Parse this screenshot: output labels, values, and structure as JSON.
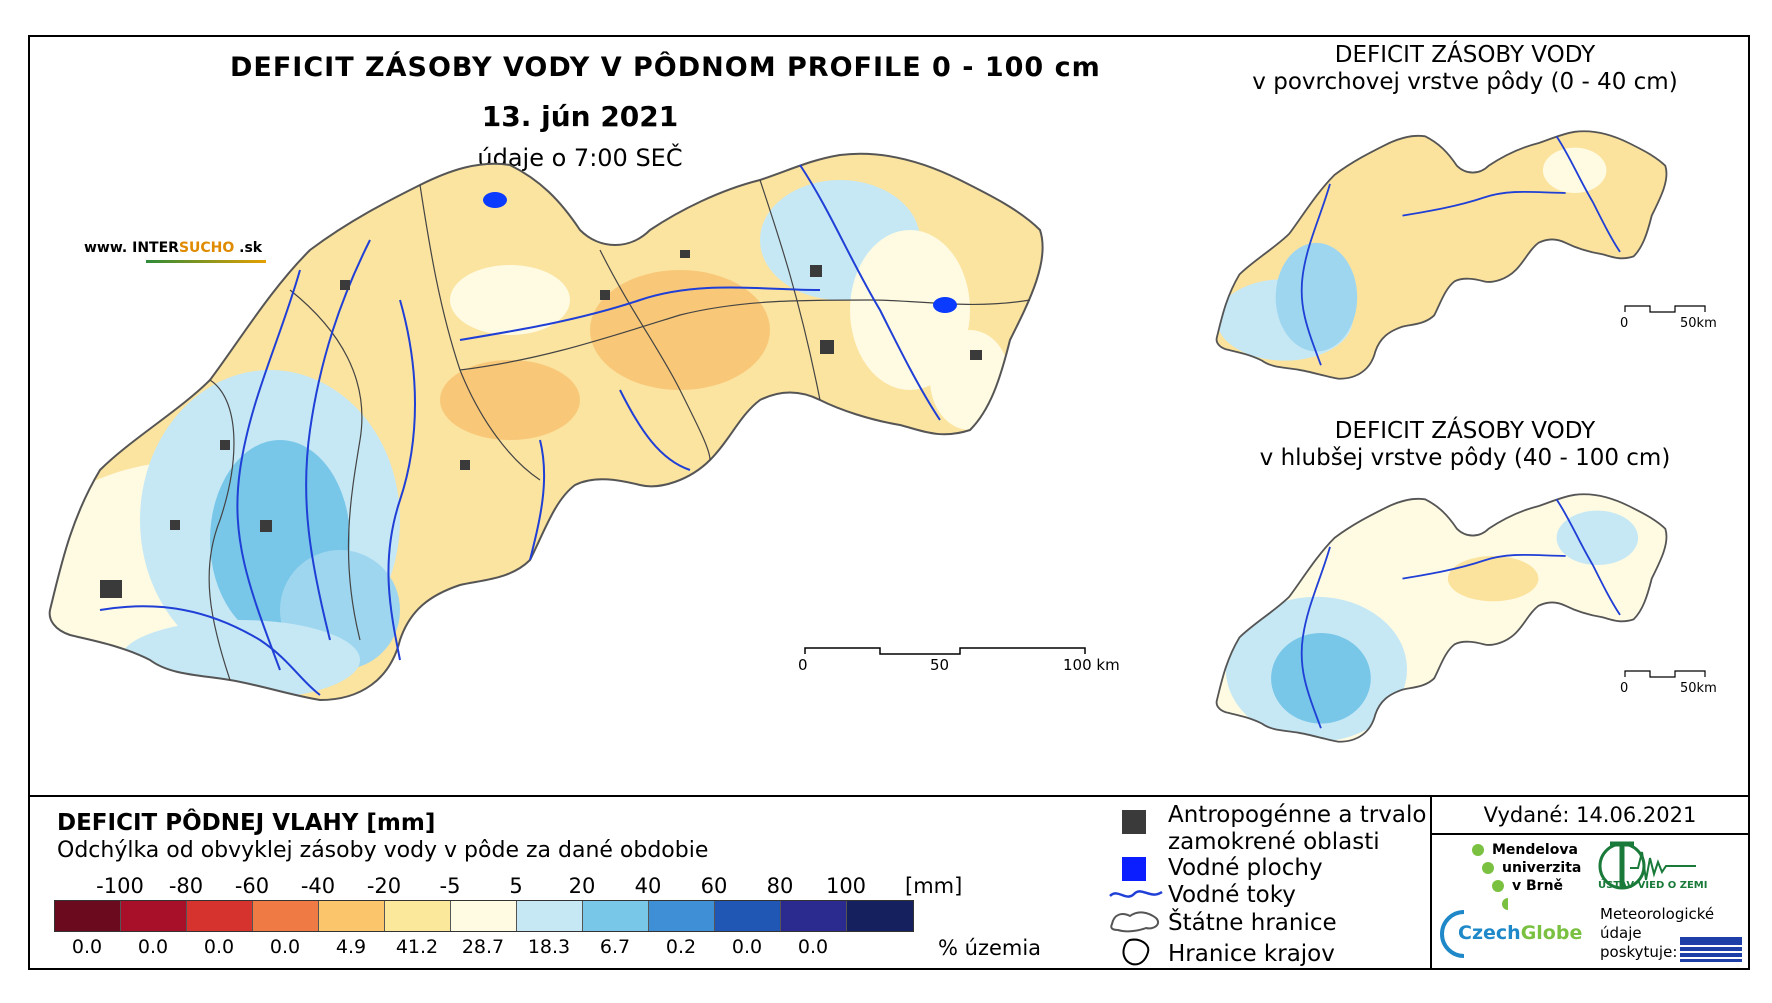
{
  "title": "DEFICIT ZÁSOBY VODY V PÔDNOM PROFILE 0 - 100 cm",
  "date": "13. jún 2021",
  "data_time": "údaje o 7:00 SEČ",
  "website": {
    "prefix": "www. ",
    "part1": "INTER",
    "part2": "SUCHO",
    "suffix": " .sk"
  },
  "main_scale": {
    "labels": [
      "0",
      "50",
      "100 km"
    ]
  },
  "inset_top": {
    "title_line1": "DEFICIT ZÁSOBY VODY",
    "title_line2": "v povrchovej vrstve pôdy (0 - 40 cm)",
    "scale_labels": [
      "0",
      "50km"
    ]
  },
  "inset_bottom": {
    "title_line1": "DEFICIT ZÁSOBY VODY",
    "title_line2": "v hlubšej vrstve pôdy (40 - 100 cm)",
    "scale_labels": [
      "0",
      "50km"
    ]
  },
  "legend": {
    "title": "DEFICIT PÔDNEJ VLAHY [mm]",
    "subtitle": "Odchýlka od obvyklej zásoby vody v pôde za dané obdobie",
    "class_breaks": [
      "-100",
      "-80",
      "-60",
      "-40",
      "-20",
      "-5",
      "5",
      "20",
      "40",
      "60",
      "80",
      "100"
    ],
    "unit": "[mm]",
    "colors": [
      "#6b0a1e",
      "#a8102a",
      "#d6322e",
      "#f07a44",
      "#fbc56c",
      "#fbe89a",
      "#fffbe2",
      "#c6e8f5",
      "#78c6e8",
      "#3f8fd6",
      "#2157b4",
      "#2a2a8f",
      "#14215e"
    ],
    "percentages": [
      "0.0",
      "0.0",
      "0.0",
      "0.0",
      "4.9",
      "41.2",
      "28.7",
      "18.3",
      "6.7",
      "0.2",
      "0.0",
      "0.0"
    ],
    "pct_unit": "% územia"
  },
  "symbols": {
    "urban_line1": "Antropogénne a trvalo",
    "urban_line2": "zamokrené oblasti",
    "water_bodies": "Vodné plochy",
    "rivers": "Vodné toky",
    "state_border": "Štátne hranice",
    "region_border": "Hranice krajov"
  },
  "issued": "Vydané: 14.06.2021",
  "logos": {
    "mendel_line1": "Mendelova",
    "mendel_line2": "univerzita",
    "mendel_line3": "v Brně",
    "czechglobe_part1": "Czech",
    "czechglobe_part2": "Globe",
    "ustav": "ÚSTAV VIED O ZEMI",
    "meteo_line1": "Meteorologické",
    "meteo_line2": "údaje",
    "meteo_line3": "poskytuje:"
  }
}
